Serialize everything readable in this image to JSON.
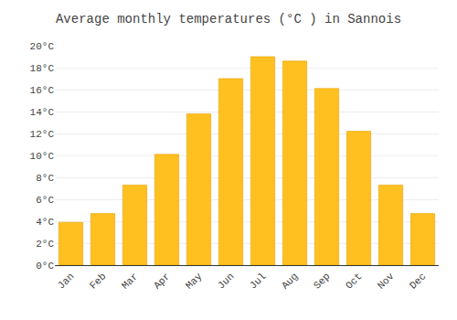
{
  "chart_data": {
    "type": "bar",
    "title": "Average monthly temperatures (°C ) in Sannois",
    "categories": [
      "Jan",
      "Feb",
      "Mar",
      "Apr",
      "May",
      "Jun",
      "Jul",
      "Aug",
      "Sep",
      "Oct",
      "Nov",
      "Dec"
    ],
    "values": [
      3.9,
      4.7,
      7.3,
      10.1,
      13.8,
      17.0,
      19.0,
      18.6,
      16.1,
      12.2,
      7.3,
      4.7
    ],
    "color": "#FFC020",
    "ylim": [
      0,
      20
    ],
    "yticks": [
      {
        "value": 0,
        "label": "0°C"
      },
      {
        "value": 2,
        "label": "2°C"
      },
      {
        "value": 4,
        "label": "4°C"
      },
      {
        "value": 6,
        "label": "6°C"
      },
      {
        "value": 8,
        "label": "8°C"
      },
      {
        "value": 10,
        "label": "10°C"
      },
      {
        "value": 12,
        "label": "12°C"
      },
      {
        "value": 14,
        "label": "14°C"
      },
      {
        "value": 16,
        "label": "16°C"
      },
      {
        "value": 18,
        "label": "18°C"
      },
      {
        "value": 20,
        "label": "20°C"
      }
    ],
    "grid": true
  }
}
